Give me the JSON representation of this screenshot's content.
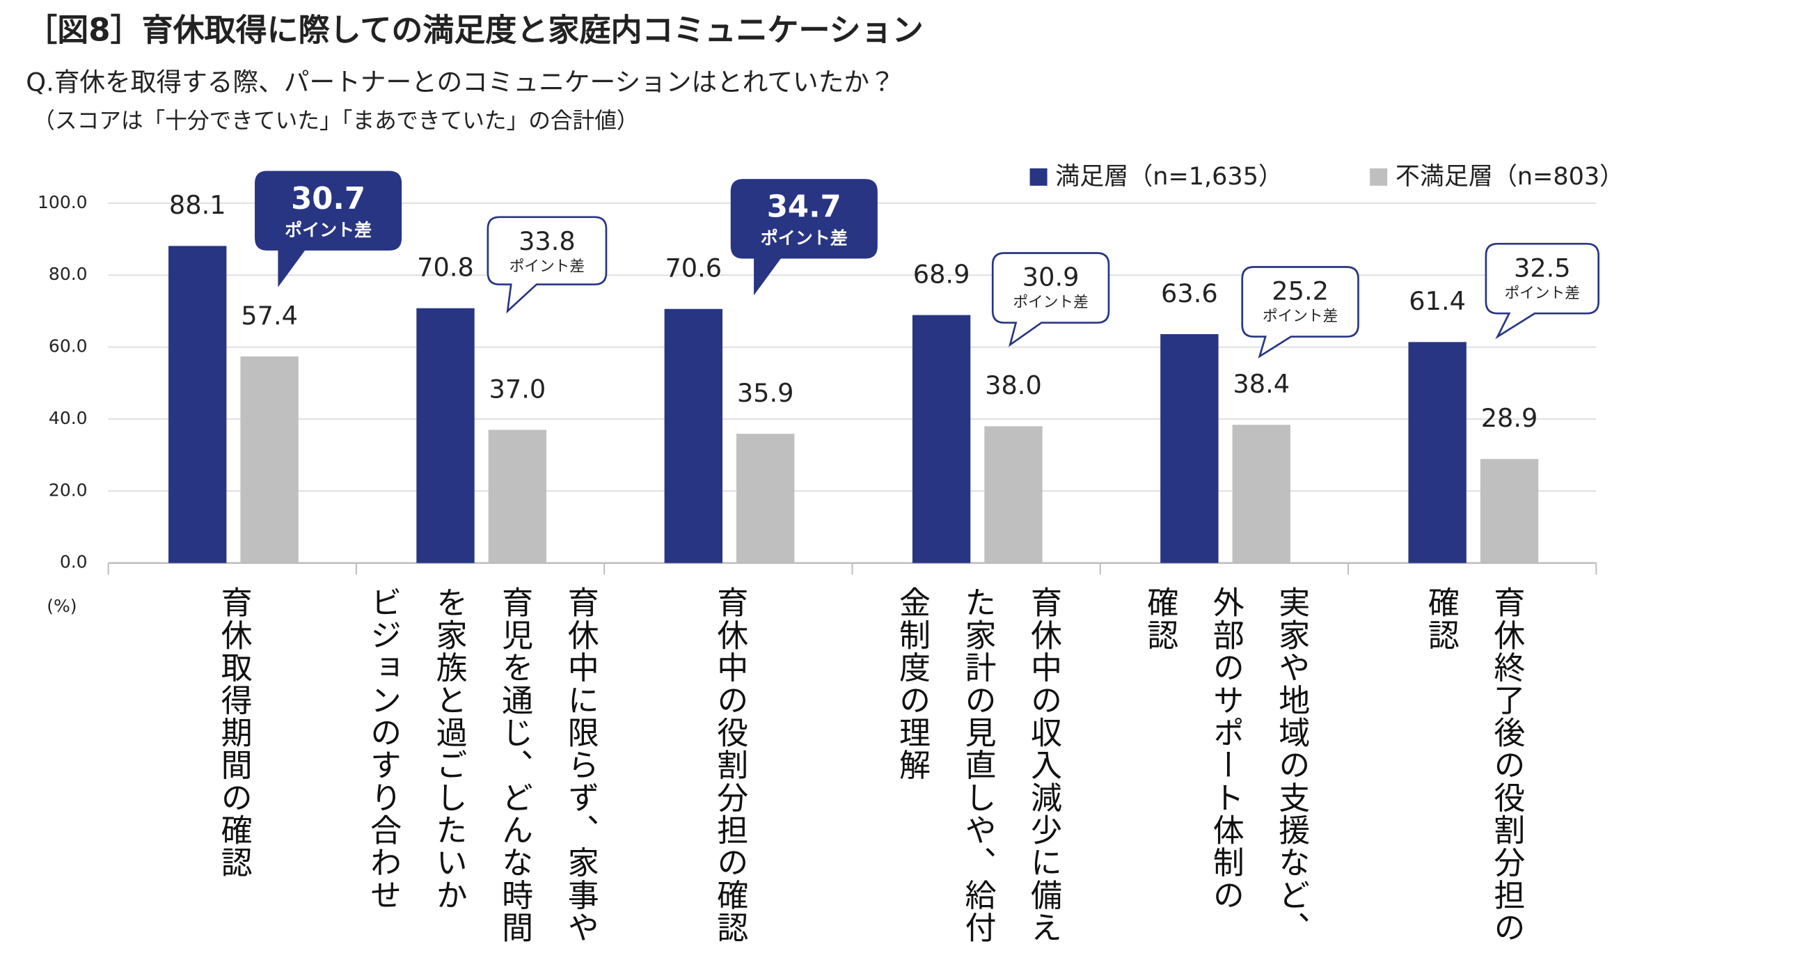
{
  "chart_data": {
    "type": "bar",
    "title": "［図8］育休取得に際しての満足度と家庭内コミュニケーション",
    "subtitle": "Q.育休を取得する際、パートナーとのコミュニケーションはとれていたか？",
    "note": "（スコアは「十分できていた」「まあできていた」の合計値）",
    "y_label": "(%)",
    "categories": [
      "育休取得期間の確認",
      "育休中に限らず、家事や\n育児を通じ、どんな時間\nを家族と過ごしたいか\nビジョンのすり合わせ",
      "育休中の役割分担の確認",
      "育休中の収入減少に備え\nた家計の見直しや、給付\n金制度の理解",
      "実家や地域の支援など、\n外部のサポート体制の\n確認",
      "育休終了後の役割分担の\n確認"
    ],
    "series": [
      {
        "name": "満足層（n=1,635）",
        "color": "#283583",
        "values": [
          88.1,
          70.8,
          70.6,
          68.9,
          63.6,
          61.4
        ],
        "value_labels": [
          "88.1",
          "70.8",
          "70.6",
          "68.9",
          "63.6",
          "61.4"
        ]
      },
      {
        "name": "不満足層（n=803）",
        "color": "#bfbfbf",
        "values": [
          57.4,
          37.0,
          35.9,
          38.0,
          38.4,
          28.9
        ],
        "value_labels": [
          "57.4",
          "37.0",
          "35.9",
          "38.0",
          "38.4",
          "28.9"
        ]
      }
    ],
    "callouts": [
      {
        "text": "30.7",
        "label": "ポイント差",
        "filled": true
      },
      {
        "text": "33.8",
        "label": "ポイント差",
        "filled": false
      },
      {
        "text": "34.7",
        "label": "ポイント差",
        "filled": true
      },
      {
        "text": "30.9",
        "label": "ポイント差",
        "filled": false
      },
      {
        "text": "25.2",
        "label": "ポイント差",
        "filled": false
      },
      {
        "text": "32.5",
        "label": "ポイント差",
        "filled": false
      }
    ],
    "callout_color": "#283583",
    "ylim": [
      0,
      100
    ],
    "yticks": [
      {
        "value": 0,
        "label": "0.0"
      },
      {
        "value": 20,
        "label": "20.0"
      },
      {
        "value": 40,
        "label": "40.0"
      },
      {
        "value": 60,
        "label": "60.0"
      },
      {
        "value": 80,
        "label": "80.0"
      },
      {
        "value": 100,
        "label": "100.0"
      }
    ],
    "grid": true
  }
}
